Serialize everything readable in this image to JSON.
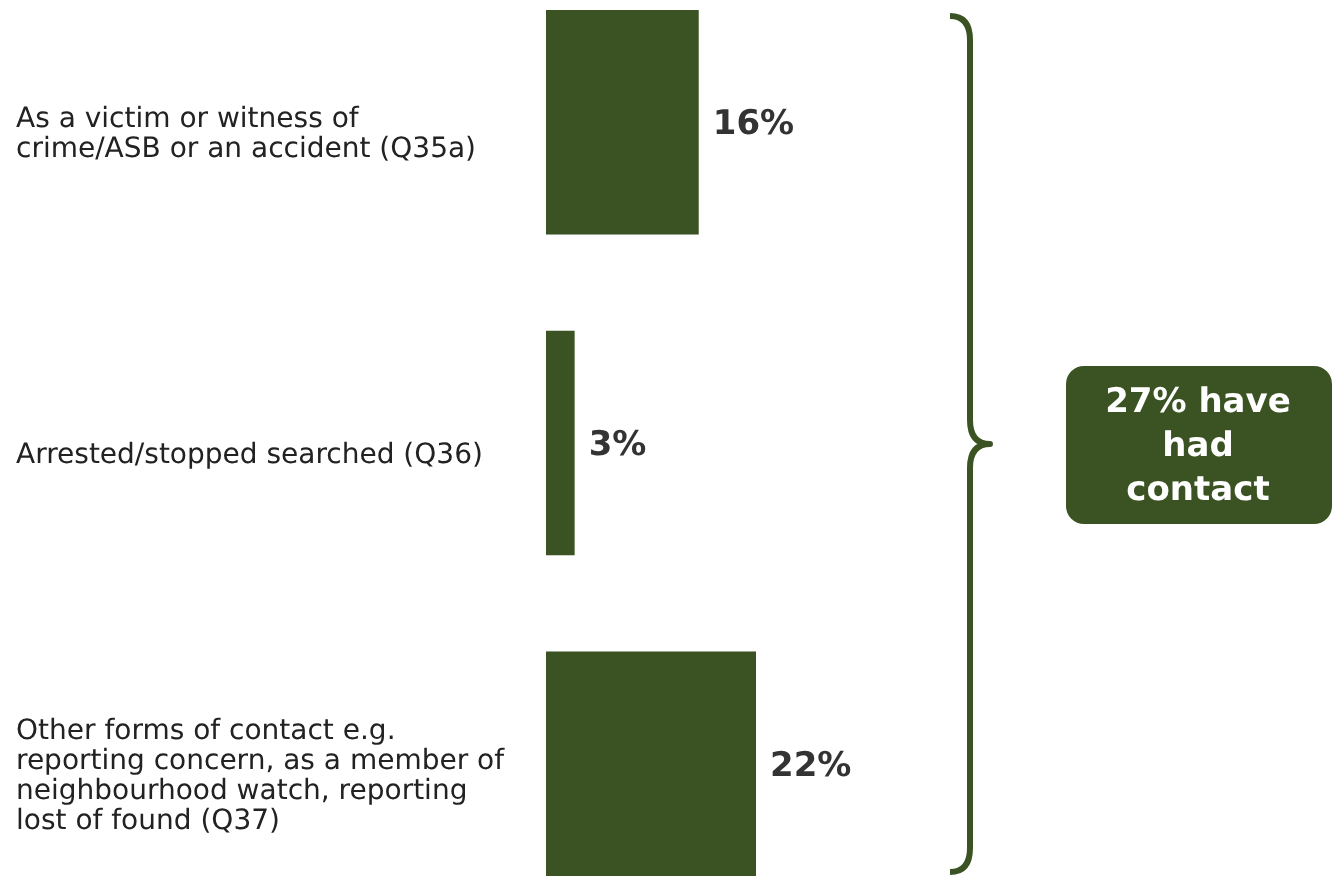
{
  "chart_data": {
    "type": "bar",
    "orientation": "horizontal",
    "categories": [
      "As a victim or witness of crime/ASB or an accident (Q35a)",
      "Arrested/stopped searched (Q36)",
      "Other forms of contact e.g. reporting concern, as a member of neighbourhood watch, reporting lost of found (Q37)"
    ],
    "values": [
      16,
      3,
      22
    ],
    "color": "#3b5323",
    "value_labels": [
      "16%",
      "3%",
      "22%"
    ],
    "annotations": [
      "27% have had contact"
    ]
  }
}
